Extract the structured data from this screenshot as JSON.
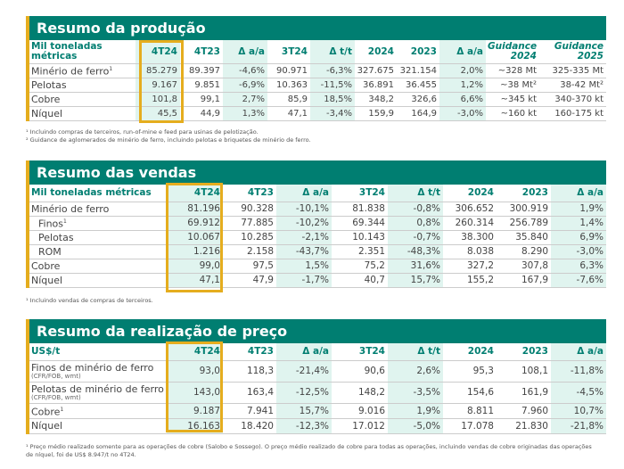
{
  "colors": {
    "teal": "#007e71",
    "gold": "#e5ad1e",
    "mint": "#e0f4ef"
  },
  "production": {
    "title": "Resumo da produção",
    "header": [
      "Mil toneladas métricas",
      "4T24",
      "4T23",
      "Δ a/a",
      "3T24",
      "Δ t/t",
      "2024",
      "2023",
      "Δ a/a",
      "Guidance 2024",
      "Guidance 2025"
    ],
    "rows": [
      {
        "label": "Minério de ferro",
        "sup": "1",
        "values": [
          "85.279",
          "89.397",
          "-4,6%",
          "90.971",
          "-6,3%",
          "327.675",
          "321.154",
          "2,0%",
          "~328 Mt",
          "325-335 Mt"
        ]
      },
      {
        "label": "Pelotas",
        "values": [
          "9.167",
          "9.851",
          "-6,9%",
          "10.363",
          "-11,5%",
          "36.891",
          "36.455",
          "1,2%",
          "~38 Mt²",
          "38-42 Mt²"
        ]
      },
      {
        "label": "Cobre",
        "values": [
          "101,8",
          "99,1",
          "2,7%",
          "85,9",
          "18,5%",
          "348,2",
          "326,6",
          "6,6%",
          "~345 kt",
          "340-370 kt"
        ]
      },
      {
        "label": "Níquel",
        "values": [
          "45,5",
          "44,9",
          "1,3%",
          "47,1",
          "-3,4%",
          "159,9",
          "164,9",
          "-3,0%",
          "~160 kt",
          "160-175 kt"
        ]
      }
    ],
    "footnotes": [
      "¹ Incluindo compras de terceiros, run-of-mine e feed para usinas de pelotização.",
      "² Guidance de aglomerados de minério de ferro, incluindo pelotas e briquetes de minério de ferro."
    ]
  },
  "sales": {
    "title": "Resumo das vendas",
    "header": [
      "Mil toneladas métricas",
      "4T24",
      "4T23",
      "Δ a/a",
      "3T24",
      "Δ t/t",
      "2024",
      "2023",
      "Δ a/a"
    ],
    "rows": [
      {
        "label": "Minério de ferro",
        "values": [
          "81.196",
          "90.328",
          "-10,1%",
          "81.838",
          "-0,8%",
          "306.652",
          "300.919",
          "1,9%"
        ]
      },
      {
        "label": "Finos",
        "sup": "1",
        "indent": true,
        "values": [
          "69.912",
          "77.885",
          "-10,2%",
          "69.344",
          "0,8%",
          "260.314",
          "256.789",
          "1,4%"
        ]
      },
      {
        "label": "Pelotas",
        "indent": true,
        "values": [
          "10.067",
          "10.285",
          "-2,1%",
          "10.143",
          "-0,7%",
          "38.300",
          "35.840",
          "6,9%"
        ]
      },
      {
        "label": "ROM",
        "indent": true,
        "values": [
          "1.216",
          "2.158",
          "-43,7%",
          "2.351",
          "-48,3%",
          "8.038",
          "8.290",
          "-3,0%"
        ]
      },
      {
        "label": "Cobre",
        "values": [
          "99,0",
          "97,5",
          "1,5%",
          "75,2",
          "31,6%",
          "327,2",
          "307,8",
          "6,3%"
        ]
      },
      {
        "label": "Níquel",
        "values": [
          "47,1",
          "47,9",
          "-1,7%",
          "40,7",
          "15,7%",
          "155,2",
          "167,9",
          "-7,6%"
        ]
      }
    ],
    "footnotes": [
      "¹ Incluindo vendas de compras de terceiros."
    ]
  },
  "price": {
    "title": "Resumo da realização de preço",
    "header": [
      "US$/t",
      "4T24",
      "4T23",
      "Δ a/a",
      "3T24",
      "Δ t/t",
      "2024",
      "2023",
      "Δ a/a"
    ],
    "rows": [
      {
        "label": "Finos de minério de ferro",
        "note": "(CFR/FOB, wmt)",
        "values": [
          "93,0",
          "118,3",
          "-21,4%",
          "90,6",
          "2,6%",
          "95,3",
          "108,1",
          "-11,8%"
        ]
      },
      {
        "label": "Pelotas de minério de ferro",
        "note": "(CFR/FOB, wmt)",
        "values": [
          "143,0",
          "163,4",
          "-12,5%",
          "148,2",
          "-3,5%",
          "154,6",
          "161,9",
          "-4,5%"
        ]
      },
      {
        "label": "Cobre",
        "sup": "1",
        "values": [
          "9.187",
          "7.941",
          "15,7%",
          "9.016",
          "1,9%",
          "8.811",
          "7.960",
          "10,7%"
        ]
      },
      {
        "label": "Níquel",
        "values": [
          "16.163",
          "18.420",
          "-12,3%",
          "17.012",
          "-5,0%",
          "17.078",
          "21.830",
          "-21,8%"
        ]
      }
    ],
    "footnotes": [
      "¹ Preço médio realizado somente para as operações de cobre (Salobo e Sossego). O preço médio realizado de cobre para todas as operações, incluindo vendas de cobre originadas das operações de níquel, foi de US$ 8.947/t no 4T24."
    ]
  }
}
